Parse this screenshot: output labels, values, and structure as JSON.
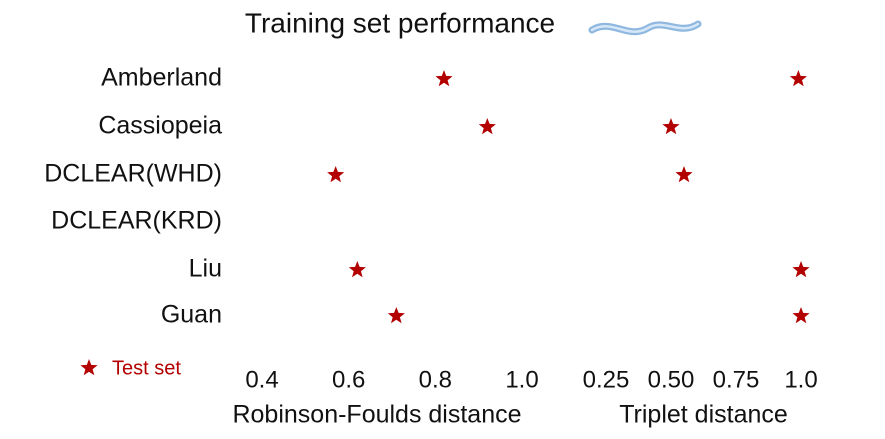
{
  "chart_data": {
    "type": "dot",
    "title": "Training set performance",
    "categories": [
      "Amberland",
      "Cassiopeia",
      "DCLEAR(WHD)",
      "DCLEAR(KRD)",
      "Liu",
      "Guan"
    ],
    "legend": {
      "name": "Test set",
      "color": "#b30000"
    },
    "panels": [
      {
        "xlabel": "Robinson-Foulds distance",
        "xlim": [
          0.4,
          1.0
        ],
        "xticks": [
          0.4,
          0.6,
          0.8,
          {
            "value": 1,
            "label": "1.0"
          }
        ],
        "values": [
          0.82,
          0.92,
          0.57,
          null,
          0.62,
          0.71
        ]
      },
      {
        "xlabel": "Triplet distance",
        "xlim": [
          0.25,
          1.0
        ],
        "xticks": [
          0.25,
          {
            "value": 0.5,
            "label": "0.50"
          },
          0.75,
          {
            "value": 1,
            "label": "1.0"
          }
        ],
        "values": [
          0.99,
          0.5,
          0.55,
          null,
          1.0,
          1.0
        ]
      }
    ]
  }
}
